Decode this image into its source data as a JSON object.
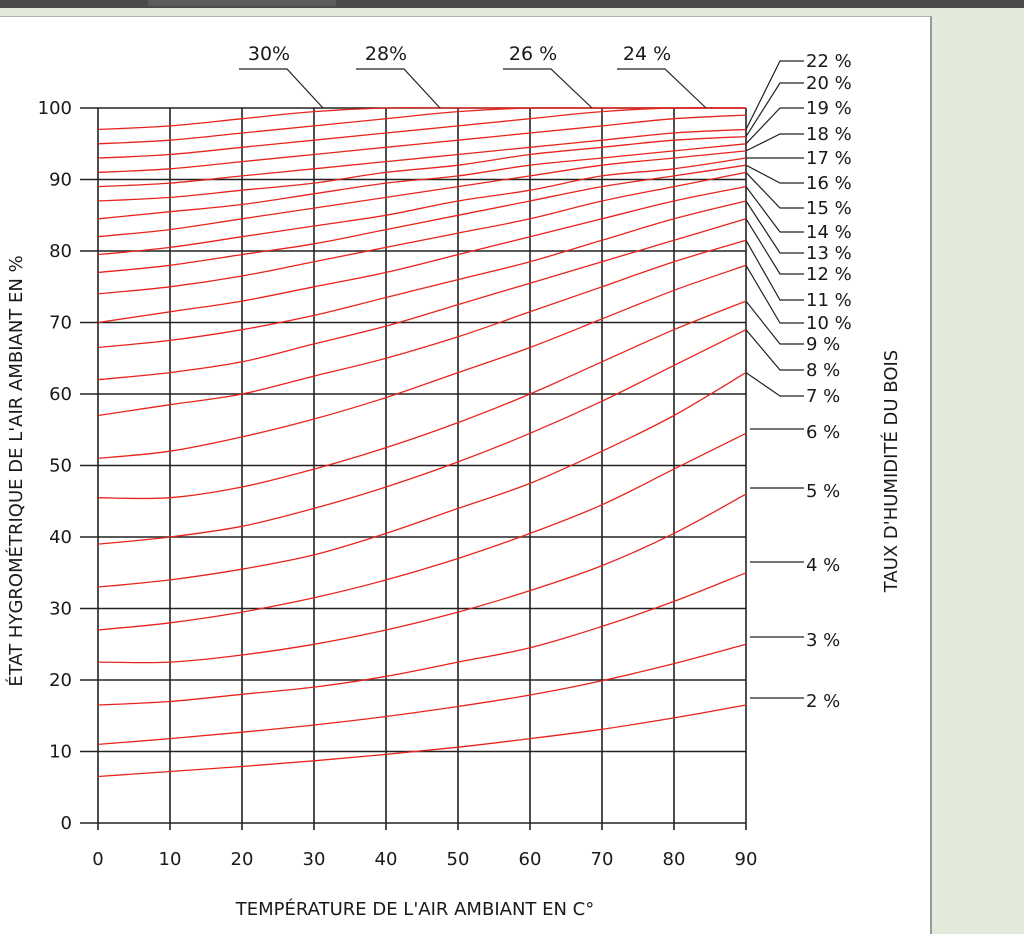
{
  "chart_data": {
    "type": "line",
    "xlabel": "TEMPÉRATURE DE L'AIR AMBIANT EN C°",
    "ylabel": "ÉTAT HYGROMÉTRIQUE DE L'AIR AMBIANT EN %",
    "right_label": "TAUX D'HUMIDITÉ DU BOIS",
    "xlim": [
      0,
      90
    ],
    "ylim": [
      0,
      100
    ],
    "x_ticks": [
      "0",
      "10",
      "20",
      "30",
      "40",
      "50",
      "60",
      "70",
      "80",
      "90"
    ],
    "y_ticks": [
      "0",
      "10",
      "20",
      "30",
      "40",
      "50",
      "60",
      "70",
      "80",
      "90",
      "100"
    ],
    "grid": true,
    "line_color": "#e8231c",
    "x": [
      0,
      10,
      20,
      30,
      40,
      50,
      60,
      70,
      80,
      90
    ],
    "series": [
      {
        "name": "2 %",
        "values": [
          6.5,
          7.2,
          7.9,
          8.7,
          9.6,
          10.6,
          11.8,
          13.1,
          14.7,
          16.5
        ]
      },
      {
        "name": "3 %",
        "values": [
          11.0,
          11.8,
          12.7,
          13.7,
          14.9,
          16.3,
          17.9,
          19.9,
          22.3,
          25.0
        ]
      },
      {
        "name": "4 %",
        "values": [
          16.5,
          17.0,
          18.0,
          19.0,
          20.5,
          22.5,
          24.5,
          27.5,
          31.0,
          35.0
        ]
      },
      {
        "name": "5 %",
        "values": [
          22.5,
          22.5,
          23.5,
          25.0,
          27.0,
          29.5,
          32.5,
          36.0,
          40.5,
          46.0
        ]
      },
      {
        "name": "6 %",
        "values": [
          27.0,
          28.0,
          29.5,
          31.5,
          34.0,
          37.0,
          40.5,
          44.5,
          49.5,
          54.5
        ]
      },
      {
        "name": "7 %",
        "values": [
          33.0,
          34.0,
          35.5,
          37.5,
          40.5,
          44.0,
          47.5,
          52.0,
          57.0,
          63.0
        ]
      },
      {
        "name": "8 %",
        "values": [
          39.0,
          40.0,
          41.5,
          44.0,
          47.0,
          50.5,
          54.5,
          59.0,
          64.0,
          69.0
        ]
      },
      {
        "name": "9 %",
        "values": [
          45.5,
          45.5,
          47.0,
          49.5,
          52.5,
          56.0,
          60.0,
          64.5,
          69.0,
          73.0
        ]
      },
      {
        "name": "10 %",
        "values": [
          51.0,
          52.0,
          54.0,
          56.5,
          59.5,
          63.0,
          66.5,
          70.5,
          74.5,
          78.0
        ]
      },
      {
        "name": "11 %",
        "values": [
          57.0,
          58.5,
          60.0,
          62.5,
          65.0,
          68.0,
          71.5,
          75.0,
          78.5,
          81.5
        ]
      },
      {
        "name": "12 %",
        "values": [
          62.0,
          63.0,
          64.5,
          67.0,
          69.5,
          72.5,
          75.5,
          78.5,
          81.5,
          84.5
        ]
      },
      {
        "name": "13 %",
        "values": [
          66.5,
          67.5,
          69.0,
          71.0,
          73.5,
          76.0,
          78.5,
          81.5,
          84.5,
          87.0
        ]
      },
      {
        "name": "14 %",
        "values": [
          70.0,
          71.5,
          73.0,
          75.0,
          77.0,
          79.5,
          82.0,
          84.5,
          87.0,
          89.0
        ]
      },
      {
        "name": "15 %",
        "values": [
          74.0,
          75.0,
          76.5,
          78.5,
          80.5,
          82.5,
          84.5,
          87.0,
          89.0,
          91.0
        ]
      },
      {
        "name": "16 %",
        "values": [
          77.0,
          78.0,
          79.5,
          81.0,
          83.0,
          85.0,
          87.0,
          89.0,
          90.5,
          92.0
        ]
      },
      {
        "name": "17 %",
        "values": [
          79.5,
          80.5,
          82.0,
          83.5,
          85.0,
          87.0,
          88.5,
          90.5,
          91.5,
          93.0
        ]
      },
      {
        "name": "18 %",
        "values": [
          82.0,
          83.0,
          84.5,
          86.0,
          87.5,
          89.0,
          90.5,
          92.0,
          93.0,
          94.0
        ]
      },
      {
        "name": "19 %",
        "values": [
          84.5,
          85.5,
          86.5,
          88.0,
          89.5,
          90.5,
          92.0,
          93.0,
          94.0,
          95.0
        ]
      },
      {
        "name": "20 %",
        "values": [
          87.0,
          87.5,
          88.5,
          89.5,
          91.0,
          92.0,
          93.5,
          94.5,
          95.5,
          96.0
        ]
      },
      {
        "name": "22 %",
        "values": [
          89.0,
          89.5,
          90.5,
          91.5,
          92.5,
          93.5,
          94.5,
          95.5,
          96.5,
          97.0
        ]
      },
      {
        "name": "24 %",
        "values": [
          91.0,
          91.5,
          92.5,
          93.5,
          94.5,
          95.5,
          96.5,
          97.5,
          98.5,
          99.0
        ]
      },
      {
        "name": "26 %",
        "values": [
          93.0,
          93.5,
          94.5,
          95.5,
          96.5,
          97.5,
          98.5,
          99.5,
          100,
          100
        ]
      },
      {
        "name": "28 %",
        "values": [
          95.0,
          95.5,
          96.5,
          97.5,
          98.5,
          99.5,
          100,
          100,
          100,
          100
        ]
      },
      {
        "name": "30 %",
        "values": [
          97.0,
          97.5,
          98.5,
          99.5,
          100,
          100,
          100,
          100,
          100,
          100
        ]
      }
    ],
    "top_labels": [
      "30%",
      "28%",
      "26 %",
      "24 %"
    ],
    "right_labels": [
      "22 %",
      "20 %",
      "19 %",
      "18 %",
      "17 %",
      "16 %",
      "15 %",
      "14 %",
      "13 %",
      "12 %",
      "11 %",
      "10 %",
      "9 %",
      "8 %",
      "7 %",
      "6 %",
      "5 %",
      "4 %",
      "3 %",
      "2 %"
    ]
  }
}
